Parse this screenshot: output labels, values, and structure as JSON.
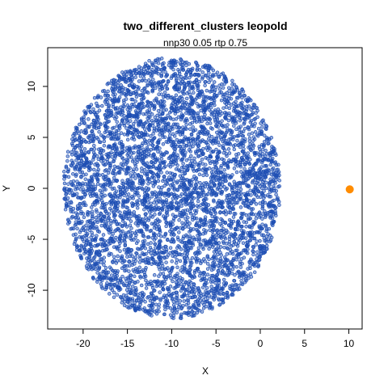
{
  "chart_data": {
    "type": "scatter",
    "title": "two_different_clusters leopold",
    "subtitle": "nnp30 0.05 rtp 0.75",
    "xlabel": "X",
    "ylabel": "Y",
    "xlim": [
      -24.0,
      11.5
    ],
    "ylim": [
      -13.8,
      13.8
    ],
    "xticks": [
      -20,
      -15,
      -10,
      -5,
      0,
      5,
      10
    ],
    "yticks": [
      -10,
      -5,
      0,
      5,
      10
    ],
    "grid": false,
    "legend": false,
    "colors": {
      "main_cluster": "#1f4fb4",
      "outlier": "#ff8c00",
      "frame": "#000000"
    },
    "series": [
      {
        "cluster": "main",
        "shape": "ellipse",
        "center": [
          -10.0,
          0.0
        ],
        "x_range": [
          -22.8,
          1.7
        ],
        "y_range": [
          -12.7,
          12.9
        ],
        "point_count": 5000,
        "marker": "small open circle"
      },
      {
        "cluster": "outlier",
        "points": [
          [
            10.1,
            -0.1
          ]
        ],
        "marker": "large filled circle"
      }
    ]
  }
}
